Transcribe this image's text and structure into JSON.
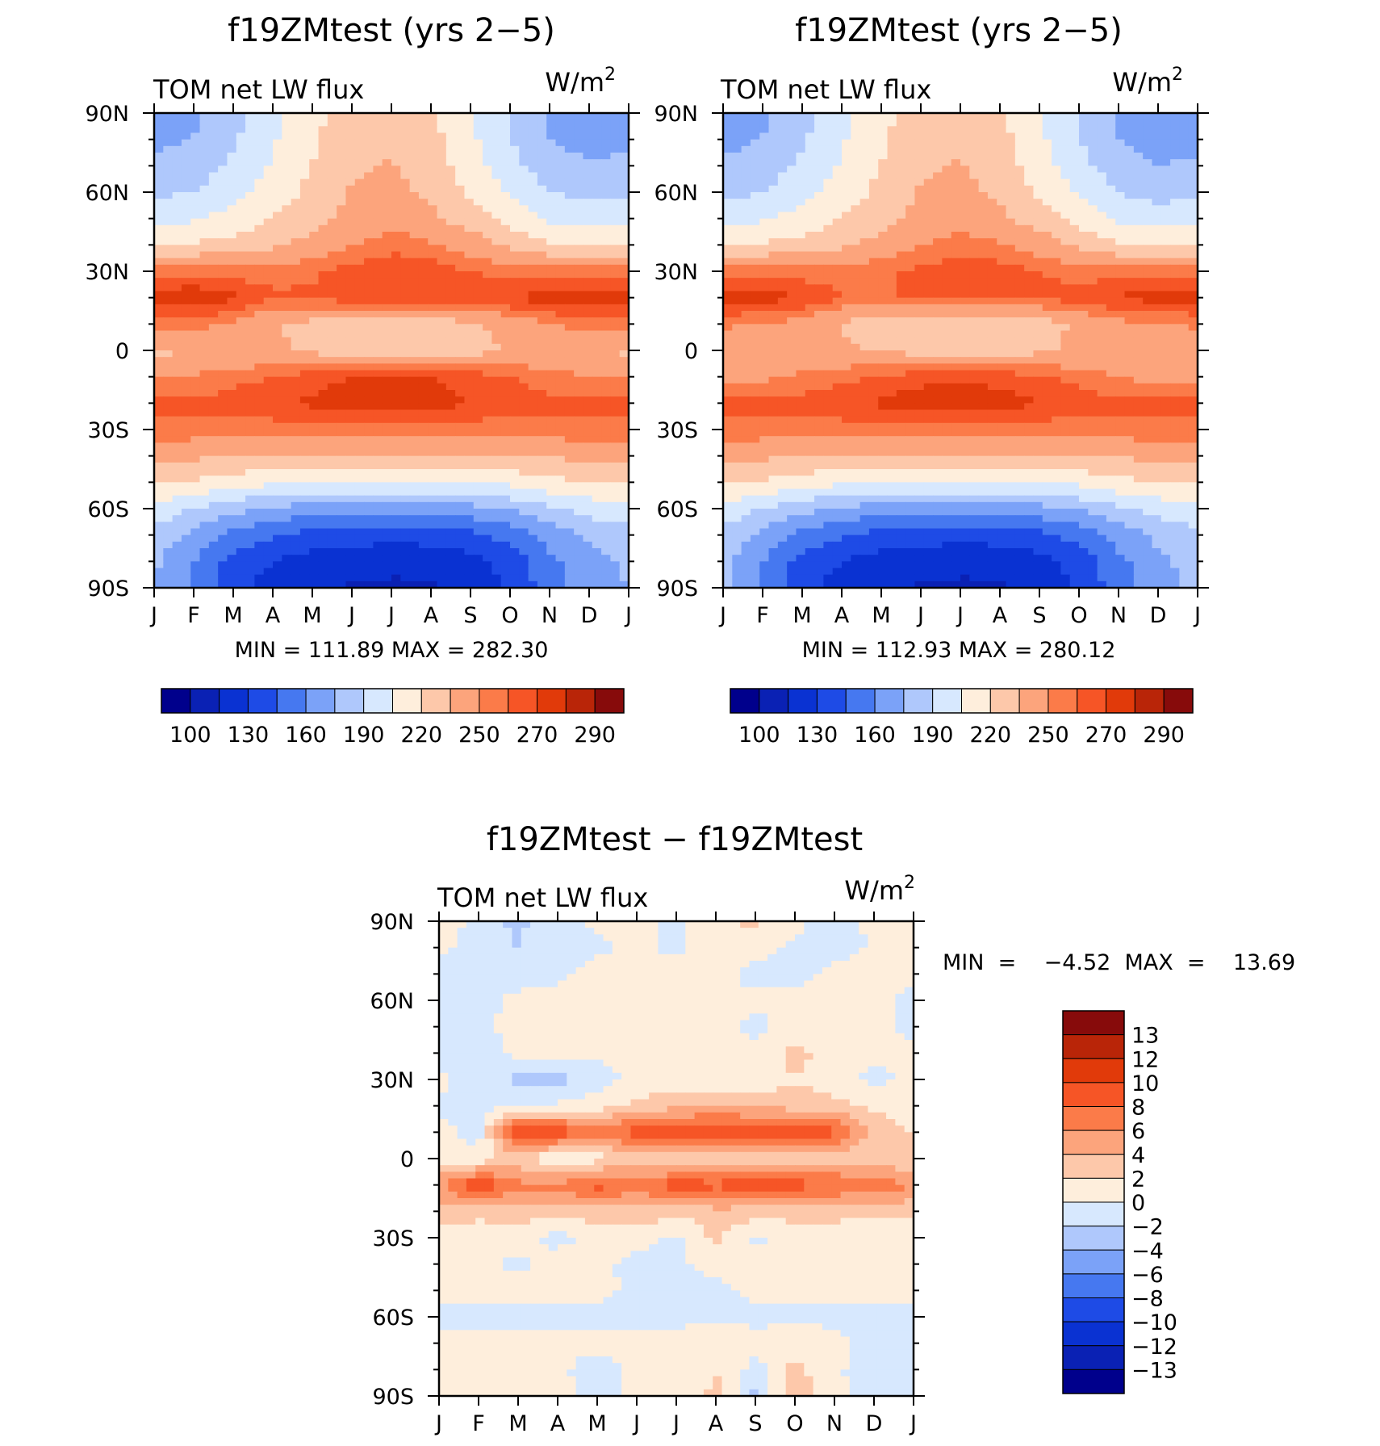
{
  "chart_data": [
    {
      "id": "panel1",
      "type": "heatmap",
      "title": "f19ZMtest (yrs 2−5)",
      "left_label": "TOM  net  LW  flux",
      "units_label": "W/m",
      "units_sup": "2",
      "x_tick_labels": [
        "J",
        "F",
        "M",
        "A",
        "M",
        "J",
        "J",
        "A",
        "S",
        "O",
        "N",
        "D",
        "J"
      ],
      "y_tick_labels": [
        "90N",
        "60N",
        "30N",
        "0",
        "30S",
        "60S",
        "90S"
      ],
      "stats_text": "MIN  =  111.89  MAX  =  282.30",
      "min": 111.89,
      "max": 282.3,
      "ylim": [
        -90,
        90
      ],
      "colorbar_labels": [
        "100",
        "130",
        "160",
        "190",
        "220",
        "250",
        "270",
        "290"
      ],
      "colorbar_colors": [
        "#00008c",
        "#0a21b4",
        "#0a32d2",
        "#1e4be6",
        "#4678f0",
        "#7ba2f8",
        "#afc8fc",
        "#d7e8fe",
        "#feeedc",
        "#fdc8aa",
        "#fca47c",
        "#fb7b49",
        "#f65526",
        "#e13a0a",
        "#b92508",
        "#870b0b"
      ],
      "levels": [
        100,
        115,
        130,
        145,
        160,
        175,
        190,
        205,
        220,
        235,
        250,
        260,
        270,
        280,
        290
      ],
      "lat_nodes": [
        90,
        80,
        70,
        60,
        50,
        40,
        30,
        20,
        10,
        0,
        -10,
        -20,
        -30,
        -40,
        -50,
        -60,
        -70,
        -80,
        -90
      ],
      "month_nodes": [
        0,
        1,
        2,
        3,
        4,
        5,
        6,
        7,
        8,
        9,
        10,
        11,
        12
      ],
      "grid": [
        [
          170,
          172,
          185,
          200,
          215,
          228,
          232,
          222,
          205,
          188,
          172,
          168,
          170
        ],
        [
          172,
          175,
          188,
          203,
          218,
          230,
          234,
          225,
          208,
          190,
          175,
          170,
          172
        ],
        [
          178,
          182,
          193,
          207,
          220,
          232,
          236,
          228,
          212,
          195,
          181,
          176,
          178
        ],
        [
          187,
          190,
          200,
          212,
          224,
          236,
          240,
          232,
          218,
          203,
          190,
          185,
          187
        ],
        [
          200,
          203,
          210,
          220,
          230,
          240,
          245,
          238,
          228,
          214,
          202,
          198,
          200
        ],
        [
          220,
          222,
          226,
          232,
          240,
          250,
          256,
          252,
          243,
          232,
          222,
          218,
          220
        ],
        [
          255,
          256,
          255,
          255,
          258,
          264,
          268,
          266,
          260,
          255,
          255,
          256,
          255
        ],
        [
          277,
          279,
          272,
          262,
          262,
          266,
          270,
          268,
          266,
          270,
          276,
          278,
          277
        ],
        [
          256,
          255,
          248,
          236,
          230,
          227,
          226,
          228,
          232,
          242,
          250,
          255,
          256
        ],
        [
          232,
          234,
          236,
          238,
          232,
          224,
          220,
          222,
          228,
          236,
          240,
          236,
          232
        ],
        [
          250,
          252,
          256,
          260,
          266,
          270,
          272,
          270,
          266,
          260,
          254,
          250,
          250
        ],
        [
          262,
          262,
          265,
          268,
          272,
          276,
          278,
          275,
          270,
          266,
          263,
          262,
          262
        ],
        [
          258,
          257,
          256,
          255,
          255,
          256,
          257,
          256,
          255,
          255,
          257,
          258,
          258
        ],
        [
          240,
          238,
          236,
          235,
          235,
          236,
          236,
          235,
          234,
          234,
          237,
          239,
          240
        ],
        [
          222,
          218,
          212,
          208,
          206,
          205,
          205,
          205,
          206,
          209,
          215,
          220,
          222
        ],
        [
          200,
          190,
          180,
          172,
          168,
          166,
          166,
          167,
          170,
          177,
          188,
          196,
          200
        ],
        [
          185,
          170,
          155,
          146,
          140,
          137,
          136,
          137,
          141,
          150,
          166,
          178,
          185
        ],
        [
          178,
          160,
          140,
          130,
          124,
          120,
          118,
          119,
          124,
          136,
          156,
          170,
          178
        ],
        [
          175,
          156,
          135,
          122,
          116,
          114,
          113,
          114,
          118,
          132,
          152,
          168,
          175
        ]
      ]
    },
    {
      "id": "panel2",
      "type": "heatmap",
      "title": "f19ZMtest (yrs 2−5)",
      "left_label": "TOM  net  LW  flux",
      "units_label": "W/m",
      "units_sup": "2",
      "x_tick_labels": [
        "J",
        "F",
        "M",
        "A",
        "M",
        "J",
        "J",
        "A",
        "S",
        "O",
        "N",
        "D",
        "J"
      ],
      "y_tick_labels": [
        "90N",
        "60N",
        "30N",
        "0",
        "30S",
        "60S",
        "90S"
      ],
      "stats_text": "MIN  =  112.93  MAX  =  280.12",
      "min": 112.93,
      "max": 280.12,
      "ylim": [
        -90,
        90
      ],
      "colorbar_labels": [
        "100",
        "130",
        "160",
        "190",
        "220",
        "250",
        "270",
        "290"
      ],
      "colorbar_colors": [
        "#00008c",
        "#0a21b4",
        "#0a32d2",
        "#1e4be6",
        "#4678f0",
        "#7ba2f8",
        "#afc8fc",
        "#d7e8fe",
        "#feeedc",
        "#fdc8aa",
        "#fca47c",
        "#fb7b49",
        "#f65526",
        "#e13a0a",
        "#b92508",
        "#870b0b"
      ],
      "levels": [
        100,
        115,
        130,
        145,
        160,
        175,
        190,
        205,
        220,
        235,
        250,
        260,
        270,
        280,
        290
      ],
      "lat_nodes": [
        90,
        80,
        70,
        60,
        50,
        40,
        30,
        20,
        10,
        0,
        -10,
        -20,
        -30,
        -40,
        -50,
        -60,
        -70,
        -80,
        -90
      ],
      "month_nodes": [
        0,
        1,
        2,
        3,
        4,
        5,
        6,
        7,
        8,
        9,
        10,
        11,
        12
      ],
      "grid": [
        [
          168,
          172,
          185,
          200,
          215,
          228,
          232,
          222,
          205,
          188,
          172,
          166,
          168
        ],
        [
          171,
          175,
          188,
          203,
          218,
          230,
          234,
          225,
          208,
          190,
          175,
          169,
          171
        ],
        [
          177,
          182,
          193,
          207,
          220,
          232,
          236,
          228,
          212,
          195,
          181,
          175,
          177
        ],
        [
          186,
          190,
          200,
          212,
          224,
          236,
          240,
          232,
          218,
          203,
          190,
          184,
          186
        ],
        [
          200,
          203,
          210,
          220,
          230,
          240,
          245,
          238,
          228,
          214,
          202,
          198,
          200
        ],
        [
          220,
          222,
          226,
          232,
          240,
          250,
          255,
          252,
          243,
          232,
          222,
          218,
          220
        ],
        [
          255,
          256,
          255,
          255,
          258,
          263,
          266,
          265,
          260,
          255,
          255,
          256,
          255
        ],
        [
          274,
          276,
          270,
          260,
          258,
          262,
          265,
          264,
          262,
          266,
          272,
          274,
          274
        ],
        [
          252,
          250,
          244,
          234,
          226,
          222,
          221,
          223,
          228,
          238,
          246,
          250,
          252
        ],
        [
          238,
          238,
          238,
          238,
          234,
          228,
          226,
          228,
          232,
          238,
          242,
          240,
          238
        ],
        [
          246,
          248,
          252,
          256,
          262,
          266,
          268,
          266,
          262,
          256,
          250,
          246,
          246
        ],
        [
          262,
          262,
          265,
          268,
          272,
          276,
          278,
          275,
          270,
          266,
          263,
          262,
          262
        ],
        [
          258,
          257,
          256,
          255,
          255,
          256,
          257,
          256,
          255,
          255,
          257,
          258,
          258
        ],
        [
          240,
          238,
          236,
          235,
          235,
          236,
          236,
          235,
          234,
          234,
          237,
          239,
          240
        ],
        [
          222,
          218,
          212,
          208,
          206,
          205,
          205,
          205,
          206,
          209,
          215,
          220,
          222
        ],
        [
          200,
          190,
          180,
          172,
          168,
          166,
          166,
          167,
          170,
          177,
          188,
          196,
          200
        ],
        [
          186,
          170,
          155,
          146,
          140,
          137,
          136,
          137,
          141,
          150,
          166,
          178,
          186
        ],
        [
          180,
          160,
          140,
          130,
          124,
          120,
          118,
          119,
          124,
          136,
          156,
          172,
          180
        ],
        [
          178,
          156,
          135,
          122,
          116,
          114,
          113,
          114,
          118,
          132,
          152,
          170,
          178
        ]
      ]
    },
    {
      "id": "panel3",
      "type": "heatmap",
      "title": "f19ZMtest − f19ZMtest",
      "left_label": "TOM  net  LW  flux",
      "units_label": "W/m",
      "units_sup": "2",
      "x_tick_labels": [
        "J",
        "F",
        "M",
        "A",
        "M",
        "J",
        "J",
        "A",
        "S",
        "O",
        "N",
        "D",
        "J"
      ],
      "y_tick_labels": [
        "90N",
        "60N",
        "30N",
        "0",
        "30S",
        "60S",
        "90S"
      ],
      "stats_text": "MIN  =    −4.52  MAX  =    13.69",
      "min": -4.52,
      "max": 13.69,
      "ylim": [
        -90,
        90
      ],
      "colorbar_labels": [
        "13",
        "12",
        "10",
        "8",
        "6",
        "4",
        "2",
        "0",
        "−2",
        "−4",
        "−6",
        "−8",
        "−10",
        "−12",
        "−13"
      ],
      "colorbar_colors": [
        "#00008c",
        "#0a21b4",
        "#0a32d2",
        "#1e4be6",
        "#4678f0",
        "#7ba2f8",
        "#afc8fc",
        "#d7e8fe",
        "#feeedc",
        "#fdc8aa",
        "#fca47c",
        "#fb7b49",
        "#f65526",
        "#e13a0a",
        "#b92508",
        "#870b0b"
      ],
      "levels": [
        -13,
        -12,
        -10,
        -8,
        -6,
        -4,
        -2,
        0,
        2,
        4,
        6,
        8,
        10,
        12,
        13
      ],
      "lat_nodes": [
        90,
        80,
        70,
        60,
        50,
        40,
        30,
        20,
        10,
        0,
        -10,
        -20,
        -30,
        -40,
        -50,
        -60,
        -70,
        -80,
        -90
      ],
      "month_nodes": [
        0,
        1,
        2,
        3,
        4,
        5,
        6,
        7,
        8,
        9,
        10,
        11,
        12
      ],
      "grid": [
        [
          1.5,
          -1.0,
          -2.5,
          -0.5,
          0.5,
          0.8,
          -0.5,
          1.5,
          2.5,
          0.5,
          -1.0,
          0.5,
          2.0
        ],
        [
          0.5,
          -1.0,
          -2.0,
          -0.8,
          -0.5,
          0.5,
          -0.5,
          1.0,
          0.8,
          -0.5,
          -0.8,
          0.2,
          0.5
        ],
        [
          -0.5,
          -1.2,
          -0.8,
          -0.5,
          0.8,
          1.2,
          0.6,
          0.8,
          -0.8,
          -0.5,
          0.5,
          0.6,
          0.5
        ],
        [
          -1.0,
          -0.6,
          0.5,
          0.8,
          0.5,
          1.8,
          0.5,
          0.6,
          0.5,
          0.5,
          1.0,
          0.5,
          -0.5
        ],
        [
          -0.8,
          -0.5,
          0.6,
          0.5,
          1.5,
          0.5,
          0.5,
          0.6,
          -0.6,
          0.8,
          0.5,
          0.6,
          -0.5
        ],
        [
          -0.5,
          -0.8,
          0.5,
          0.8,
          0.5,
          0.6,
          0.5,
          0.8,
          0.5,
          2.5,
          1.5,
          0.5,
          0.5
        ],
        [
          0.5,
          -1.2,
          -2.5,
          -2.8,
          -1.0,
          0.5,
          0.6,
          0.5,
          0.6,
          2.0,
          0.8,
          -0.5,
          0.5
        ],
        [
          -0.5,
          -0.5,
          -0.8,
          0.5,
          1.0,
          2.5,
          3.5,
          3.8,
          3.5,
          3.0,
          2.5,
          1.5,
          0.5
        ],
        [
          0.8,
          -0.8,
          11.0,
          9.5,
          8.0,
          9.0,
          9.5,
          10.5,
          9.5,
          10.0,
          8.5,
          3.5,
          2.0
        ],
        [
          1.0,
          0.5,
          3.0,
          -0.5,
          1.0,
          2.5,
          1.5,
          2.8,
          2.5,
          2.5,
          2.8,
          2.5,
          2.0
        ],
        [
          5.5,
          10.0,
          6.5,
          6.5,
          9.0,
          6.5,
          9.5,
          8.5,
          9.5,
          9.0,
          8.0,
          7.5,
          6.0
        ],
        [
          3.5,
          2.8,
          3.0,
          2.8,
          3.0,
          3.5,
          2.5,
          3.5,
          3.0,
          2.8,
          3.0,
          2.5,
          2.5
        ],
        [
          0.8,
          0.5,
          0.8,
          -0.6,
          0.8,
          0.8,
          -0.5,
          2.5,
          -0.5,
          0.8,
          0.5,
          0.5,
          0.5
        ],
        [
          0.5,
          0.8,
          -0.5,
          0.8,
          0.5,
          -0.6,
          -0.5,
          0.8,
          1.5,
          0.5,
          0.6,
          0.8,
          0.5
        ],
        [
          0.8,
          0.5,
          0.8,
          0.5,
          0.6,
          -0.5,
          -0.8,
          -0.8,
          0.6,
          0.5,
          0.8,
          0.5,
          0.5
        ],
        [
          -0.5,
          -0.8,
          -0.6,
          -0.5,
          -0.6,
          -0.5,
          -0.6,
          -0.5,
          -0.6,
          -0.5,
          -0.6,
          -0.5,
          -0.5
        ],
        [
          0.5,
          0.6,
          0.8,
          0.5,
          0.6,
          0.8,
          0.6,
          2.0,
          0.8,
          1.5,
          0.6,
          -0.5,
          -0.8
        ],
        [
          0.8,
          0.5,
          1.5,
          0.5,
          -1.0,
          0.5,
          0.8,
          2.0,
          -0.8,
          2.5,
          0.5,
          -1.5,
          -1.2
        ],
        [
          0.5,
          0.8,
          0.5,
          0.6,
          -0.8,
          0.5,
          0.5,
          2.5,
          -2.5,
          3.5,
          0.5,
          -1.0,
          -0.8
        ]
      ]
    }
  ]
}
